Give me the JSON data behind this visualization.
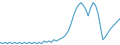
{
  "values": [
    10,
    9,
    10,
    9,
    10,
    9,
    10,
    9,
    10,
    9,
    10,
    9,
    10,
    9,
    10,
    9,
    10,
    9,
    11,
    10,
    11,
    10,
    12,
    11,
    12,
    13,
    14,
    16,
    19,
    24,
    30,
    35,
    38,
    40,
    38,
    35,
    30,
    36,
    40,
    38,
    32,
    22,
    12,
    14,
    17,
    20,
    22,
    24,
    26,
    28
  ],
  "line_color": "#4a9fc8",
  "background_color": "#ffffff",
  "linewidth": 0.8
}
